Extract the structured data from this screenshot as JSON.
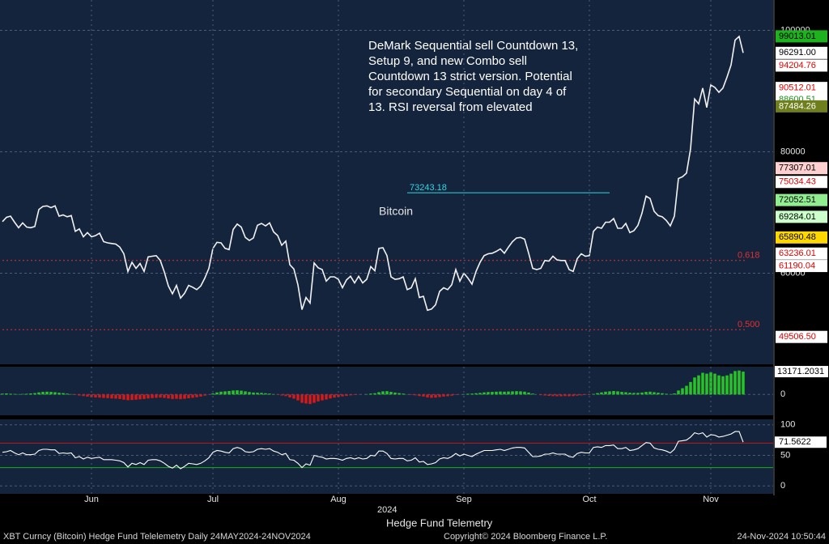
{
  "chart_data": [
    {
      "type": "line",
      "name": "Bitcoin",
      "color": "#f2f2f2",
      "xlim": [
        -0.6,
        190.4
      ],
      "ylim": [
        45000,
        105000
      ],
      "yticks": [
        60000,
        80000,
        100000
      ],
      "grid": true,
      "values": [
        68500,
        69200,
        69400,
        68400,
        67500,
        68300,
        67600,
        67500,
        67700,
        70500,
        71000,
        71100,
        70800,
        71100,
        69400,
        69600,
        69300,
        69500,
        66900,
        67300,
        66000,
        66700,
        66000,
        66200,
        66600,
        65200,
        65000,
        64900,
        64800,
        64300,
        63200,
        60300,
        61800,
        60800,
        61600,
        60300,
        62700,
        62800,
        62900,
        62100,
        60200,
        57900,
        56600,
        58000,
        55900,
        56700,
        58000,
        57700,
        57300,
        57900,
        59200,
        60800,
        64100,
        65100,
        65000,
        64100,
        63900,
        67200,
        68100,
        67600,
        65900,
        65400,
        65800,
        67900,
        68200,
        67800,
        68300,
        66800,
        66200,
        64600,
        65300,
        61400,
        60700,
        58100,
        54000,
        56000,
        55100,
        61700,
        60900,
        60600,
        58700,
        59400,
        59400,
        59000,
        57600,
        58900,
        59500,
        58400,
        59500,
        58400,
        59000,
        61100,
        60400,
        64100,
        64200,
        62900,
        59400,
        59000,
        59100,
        59400,
        57300,
        57600,
        59100,
        56000,
        56200,
        53900,
        54100,
        54800,
        57000,
        57600,
        57300,
        58100,
        60600,
        58700,
        60000,
        59200,
        58200,
        60300,
        61800,
        62900,
        63200,
        63300,
        63600,
        64000,
        63300,
        64300,
        65200,
        65800,
        65900,
        65600,
        63300,
        60800,
        60600,
        60800,
        62100,
        62000,
        62800,
        62200,
        62100,
        62100,
        60600,
        60300,
        62400,
        63200,
        62800,
        62900,
        66900,
        67600,
        67400,
        68400,
        68400,
        69000,
        67400,
        67400,
        68200,
        66700,
        67000,
        67900,
        69900,
        72700,
        72300,
        70200,
        69500,
        69300,
        68700,
        67800,
        69400,
        75600,
        75900,
        76500,
        80500,
        88700,
        87900,
        90500,
        87300,
        91000,
        90600,
        89800,
        90500,
        92300,
        94300,
        98400,
        99000,
        96291
      ],
      "annotation": [
        "DeMark Sequential sell Countdown 13,",
        "Setup 9, and new Combo sell",
        "Countdown 13 strict version. Potential",
        "for secondary Sequential on day 4 of",
        "13.  RSI reversal from elevated"
      ],
      "levels": [
        {
          "value": 73243.18,
          "label": "73243.18",
          "color": "#33d6e0",
          "x": [
            100,
            150
          ]
        },
        {
          "value": 62100,
          "label": "0.618",
          "color": "#e03030",
          "x": [
            0,
            184
          ]
        },
        {
          "value": 50700,
          "label": "0.500",
          "color": "#e03030",
          "x": [
            0,
            184
          ]
        }
      ],
      "price_labels": [
        {
          "value": 99013.01,
          "label": "99013.01",
          "bg": "#1fb21f",
          "fg": "#000000"
        },
        {
          "value": 96291,
          "label": "96291.00",
          "bg": "#ffffff",
          "fg": "#000000"
        },
        {
          "value": 94204.76,
          "label": "94204.76",
          "bg": "#ffffff",
          "fg": "#e00000"
        },
        {
          "value": 90512.01,
          "label": "90512.01",
          "bg": "#ffffff",
          "fg": "#e00000"
        },
        {
          "value": 88600.51,
          "label": "88600.51",
          "bg": "#ffffff",
          "fg": "#1e8f1e"
        },
        {
          "value": 87484.26,
          "label": "87484.26",
          "bg": "#6f7f1e",
          "fg": "#ffffff"
        },
        {
          "value": 77307.01,
          "label": "77307.01",
          "bg": "#ffd0d0",
          "fg": "#000000"
        },
        {
          "value": 75034.43,
          "label": "75034.43",
          "bg": "#ffffff",
          "fg": "#e00000"
        },
        {
          "value": 72052.51,
          "label": "72052.51",
          "bg": "#90ee90",
          "fg": "#000000"
        },
        {
          "value": 69284.01,
          "label": "69284.01",
          "bg": "#ccffcc",
          "fg": "#000000"
        },
        {
          "value": 65890.48,
          "label": "65890.48",
          "bg": "#ffd700",
          "fg": "#000000"
        },
        {
          "value": 63236.01,
          "label": "63236.01",
          "bg": "#ffffff",
          "fg": "#e00000"
        },
        {
          "value": 61190.04,
          "label": "61190.04",
          "bg": "#ffffff",
          "fg": "#e00000"
        },
        {
          "value": 49506.5,
          "label": "49506.50",
          "bg": "#ffffff",
          "fg": "#e00000"
        }
      ]
    },
    {
      "type": "bar",
      "color_up": "#27c427",
      "color_down": "#d41a1a",
      "xlim": [
        -0.6,
        190.4
      ],
      "ylim": [
        -12000,
        16000
      ],
      "yticks": [
        0
      ],
      "values": [
        500,
        600,
        400,
        300,
        200,
        300,
        400,
        600,
        800,
        1200,
        1500,
        1600,
        1500,
        1300,
        1000,
        800,
        500,
        200,
        -300,
        -600,
        -900,
        -1200,
        -1500,
        -1700,
        -1800,
        -2000,
        -2100,
        -2300,
        -2400,
        -2600,
        -3000,
        -3300,
        -3200,
        -3000,
        -2800,
        -2600,
        -2300,
        -2100,
        -1900,
        -1800,
        -2000,
        -2300,
        -2600,
        -2500,
        -2700,
        -2500,
        -2200,
        -1900,
        -1600,
        -1200,
        -700,
        -200,
        600,
        1200,
        1600,
        1800,
        2000,
        2300,
        2400,
        2200,
        1800,
        1400,
        1100,
        1000,
        900,
        700,
        500,
        200,
        -200,
        -600,
        -900,
        -1700,
        -2400,
        -3400,
        -4800,
        -5200,
        -5500,
        -4800,
        -4000,
        -3400,
        -2900,
        -2300,
        -1800,
        -1400,
        -1100,
        -800,
        -500,
        -300,
        -100,
        0,
        200,
        500,
        700,
        1300,
        1800,
        1900,
        1500,
        1100,
        800,
        500,
        100,
        -300,
        -500,
        -900,
        -1200,
        -1700,
        -1900,
        -1800,
        -1500,
        -1200,
        -1000,
        -700,
        -300,
        -100,
        200,
        400,
        500,
        700,
        900,
        1200,
        1400,
        1500,
        1600,
        1700,
        1600,
        1700,
        1800,
        1900,
        1800,
        1600,
        1100,
        500,
        0,
        -400,
        -600,
        -800,
        -900,
        -1000,
        -1000,
        -900,
        -1000,
        -900,
        -700,
        -500,
        -300,
        -200,
        300,
        800,
        1200,
        1600,
        1800,
        2000,
        1800,
        1500,
        1300,
        1000,
        900,
        900,
        1100,
        1500,
        1600,
        1300,
        1000,
        700,
        400,
        200,
        600,
        2300,
        3600,
        5000,
        7200,
        9800,
        11000,
        12500,
        12000,
        12800,
        12000,
        11000,
        10500,
        11000,
        12000,
        13500,
        13800,
        13171.2031
      ]
    },
    {
      "type": "line",
      "color": "#ffffff",
      "xlim": [
        -0.6,
        190.4
      ],
      "ylim": [
        -13,
        109
      ],
      "yticks": [
        0,
        50,
        100
      ],
      "hlines": [
        {
          "value": 70,
          "color": "#c01818"
        },
        {
          "value": 30,
          "color": "#19b019"
        }
      ],
      "xticks": [
        {
          "value": 22,
          "label": "Jun"
        },
        {
          "value": 52,
          "label": "Jul"
        },
        {
          "value": 83,
          "label": "Aug"
        },
        {
          "value": 114,
          "label": "Sep"
        },
        {
          "value": 145,
          "label": "Oct"
        },
        {
          "value": 175,
          "label": "Nov"
        }
      ],
      "xlabel": "2024",
      "values": [
        55,
        56,
        58,
        54,
        51,
        54,
        51,
        51,
        52,
        58,
        60,
        60,
        59,
        59,
        53,
        54,
        53,
        54,
        46,
        48,
        44,
        47,
        45,
        46,
        47,
        43,
        43,
        43,
        42,
        41,
        38,
        31,
        37,
        35,
        38,
        35,
        42,
        43,
        43,
        41,
        37,
        32,
        29,
        34,
        28,
        32,
        37,
        36,
        35,
        37,
        41,
        46,
        55,
        58,
        57,
        55,
        54,
        61,
        63,
        61,
        56,
        55,
        56,
        60,
        61,
        60,
        61,
        57,
        55,
        51,
        53,
        43,
        42,
        37,
        30,
        36,
        34,
        50,
        48,
        47,
        44,
        45,
        45,
        44,
        42,
        45,
        46,
        44,
        46,
        44,
        45,
        50,
        49,
        57,
        57,
        53,
        45,
        44,
        45,
        45,
        41,
        42,
        46,
        39,
        40,
        35,
        36,
        38,
        44,
        46,
        45,
        48,
        53,
        49,
        52,
        50,
        48,
        52,
        55,
        58,
        58,
        58,
        59,
        60,
        58,
        60,
        62,
        63,
        63,
        62,
        55,
        48,
        48,
        49,
        52,
        52,
        54,
        52,
        52,
        52,
        48,
        47,
        53,
        55,
        54,
        54,
        63,
        64,
        63,
        66,
        66,
        67,
        61,
        61,
        63,
        58,
        59,
        61,
        66,
        71,
        70,
        62,
        60,
        59,
        57,
        54,
        60,
        73,
        74,
        75,
        80,
        87,
        85,
        87,
        80,
        84,
        83,
        80,
        81,
        83,
        85,
        89,
        89,
        71.5622
      ]
    }
  ],
  "caption": "Hedge Fund Telemetry",
  "footer": {
    "left": "XBT Curncy (Bitcoin) Hedge Fund Telelemetry  Daily 24MAY2024-24NOV2024",
    "center": "Copyright© 2024 Bloomberg Finance L.P.",
    "right": "24-Nov-2024 10:50:44"
  }
}
